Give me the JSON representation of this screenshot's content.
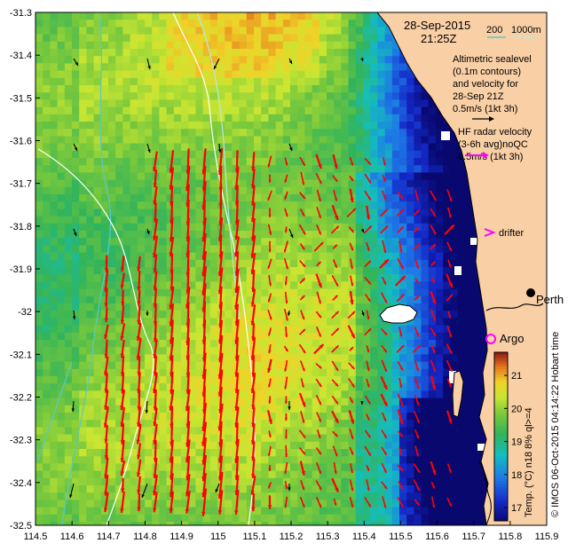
{
  "header": {
    "date": "28-Sep-2015",
    "time": "21:25Z"
  },
  "depth_legend": {
    "label_200": "200",
    "label_1000": "1000m",
    "color_200": "#5ac8c8",
    "color_1000": "#b9e6e6"
  },
  "altimetry": {
    "lines": [
      "Altimetric sealevel",
      "(0.1m contours)",
      "and velocity for",
      "28-Sep 21Z",
      "0.5m/s (1kt 3h)"
    ]
  },
  "hf_radar": {
    "lines": [
      "HF radar velocity",
      "(3-6h avg)noQC",
      "0.5m/s (1kt 3h)"
    ],
    "color": "#ff0000"
  },
  "drifter": {
    "label": "drifter",
    "color": "#ff00ff"
  },
  "argo": {
    "label": "Argo",
    "color": "#ff00ff"
  },
  "city": {
    "label": "Perth"
  },
  "colorbar": {
    "title": "Temp. (°C) n18 8% ql>=4",
    "ticks": [
      "21",
      "20",
      "19",
      "18",
      "17"
    ],
    "min": 16.6,
    "max": 21.7
  },
  "credit": "© IMOS 06-Oct-2015 04:14:22 Hobart time",
  "axes": {
    "x_ticks": [
      "114.5",
      "114.6",
      "114.7",
      "114.8",
      "114.9",
      "115",
      "115.1",
      "115.2",
      "115.3",
      "115.4",
      "115.5",
      "115.6",
      "115.7",
      "115.8",
      "115.9"
    ],
    "y_ticks": [
      "-31.3",
      "-31.4",
      "-31.5",
      "-31.6",
      "-31.7",
      "-31.8",
      "-31.9",
      "-32",
      "-32.1",
      "-32.2",
      "-32.3",
      "-32.4",
      "-32.5"
    ],
    "xlim": [
      114.5,
      115.9
    ],
    "ylim": [
      -32.5,
      -31.3
    ]
  },
  "colors": {
    "land": "#f9cfa5",
    "coast_line": "#000000",
    "altimetry_arrow": "#000000",
    "hf_arrow": "#ff0000"
  }
}
